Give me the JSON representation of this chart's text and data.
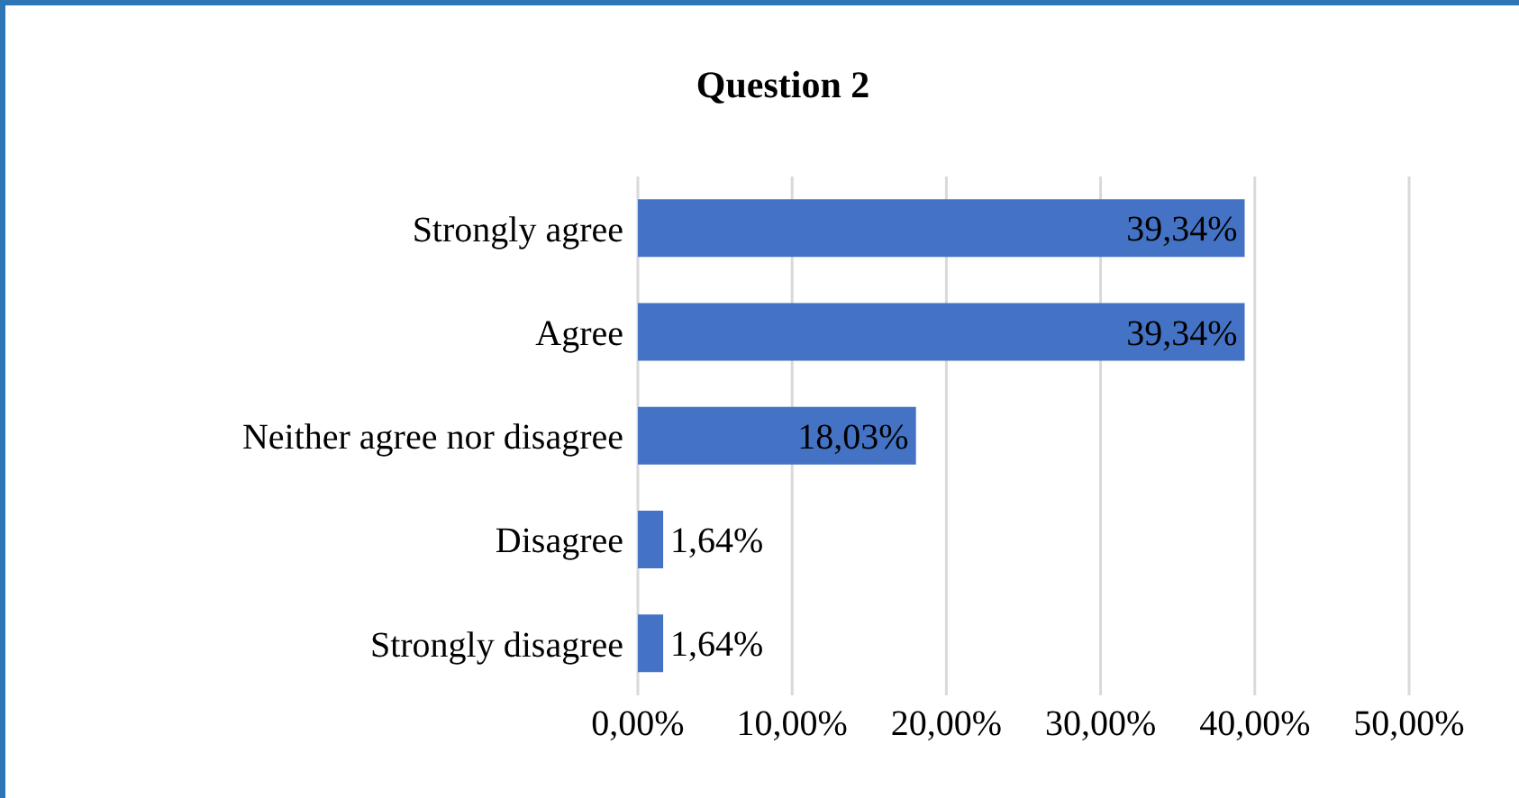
{
  "chart_data": {
    "type": "bar",
    "orientation": "horizontal",
    "title": "Question 2",
    "categories": [
      "Strongly agree",
      "Agree",
      "Neither agree nor disagree",
      "Disagree",
      "Strongly disagree"
    ],
    "values": [
      39.34,
      39.34,
      18.03,
      1.64,
      1.64
    ],
    "value_labels": [
      "39,34%",
      "39,34%",
      "18,03%",
      "1,64%",
      "1,64%"
    ],
    "color": "#4472c4",
    "xlim": [
      0,
      50
    ],
    "xticks": [
      {
        "value": 0,
        "label": "0,00%"
      },
      {
        "value": 10,
        "label": "10,00%"
      },
      {
        "value": 20,
        "label": "20,00%"
      },
      {
        "value": 30,
        "label": "30,00%"
      },
      {
        "value": 40,
        "label": "40,00%"
      },
      {
        "value": 50,
        "label": "50,00%"
      }
    ],
    "grid": "x",
    "legend": false
  }
}
